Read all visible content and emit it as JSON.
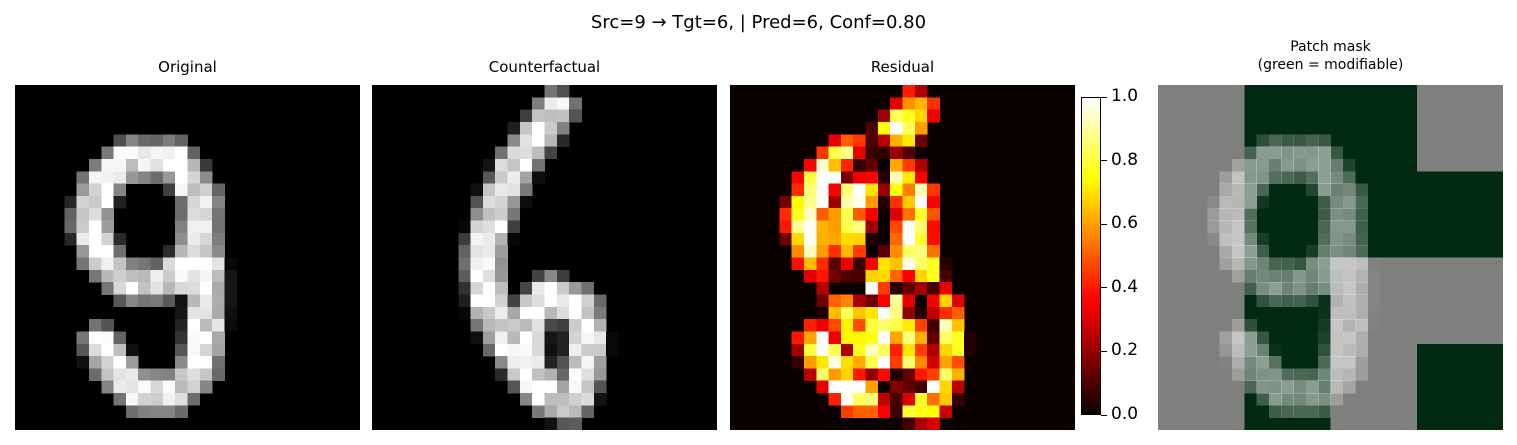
{
  "figure": {
    "suptitle": "Src=9 → Tgt=6, | Pred=6, Conf=0.80"
  },
  "panels": [
    {
      "title": "Original"
    },
    {
      "title": "Counterfactual"
    },
    {
      "title": "Residual"
    },
    {
      "title_line1": "Patch mask",
      "title_line2": "(green = modifiable)"
    }
  ],
  "colorbar": {
    "range": [
      0.0,
      1.0
    ],
    "ticks": [
      "0.0",
      "0.2",
      "0.4",
      "0.6",
      "0.8",
      "1.0"
    ],
    "colormap": "hot"
  },
  "mask_colors": {
    "modifiable": "#022a12",
    "fixed": "#7f807e"
  },
  "chart_data": [
    {
      "type": "heatmap",
      "name_ref": "Original",
      "colormap": "gray",
      "grid": "28x28",
      "strokes": [
        [
          [
            12,
            6
          ],
          [
            9,
            6
          ],
          [
            7,
            8
          ],
          [
            6,
            11
          ],
          [
            7,
            14
          ],
          [
            9,
            16
          ],
          [
            12,
            16
          ],
          [
            14,
            15
          ],
          [
            15,
            12
          ],
          [
            15,
            9
          ],
          [
            13,
            6
          ],
          [
            12,
            6
          ]
        ],
        [
          [
            15,
            12
          ],
          [
            15.5,
            15
          ],
          [
            15.5,
            19
          ],
          [
            15,
            23
          ],
          [
            13,
            25
          ],
          [
            10,
            25
          ],
          [
            8,
            23
          ],
          [
            7,
            21
          ]
        ]
      ],
      "range": [
        0,
        1
      ]
    },
    {
      "type": "heatmap",
      "name_ref": "Counterfactual",
      "colormap": "gray",
      "grid": "28x28",
      "strokes": [
        [
          [
            15,
            2
          ],
          [
            12,
            6
          ],
          [
            10,
            10
          ],
          [
            9,
            14
          ],
          [
            9.5,
            18
          ],
          [
            11,
            21
          ],
          [
            12.5,
            23
          ]
        ],
        [
          [
            12.5,
            23
          ],
          [
            14,
            25
          ],
          [
            16,
            26
          ],
          [
            17,
            24
          ],
          [
            17.5,
            21
          ],
          [
            17,
            18
          ],
          [
            14.5,
            17
          ],
          [
            12.5,
            19
          ],
          [
            12.5,
            23
          ]
        ]
      ],
      "range": [
        0,
        1
      ]
    },
    {
      "type": "heatmap",
      "name_ref": "Residual",
      "colormap": "hot",
      "grid": "28x28",
      "range": [
        0,
        1
      ]
    },
    {
      "type": "heatmap",
      "name_ref": "Patch mask",
      "grid": "4x4 patches",
      "mask": [
        [
          0,
          1,
          1,
          0
        ],
        [
          0,
          1,
          1,
          1
        ],
        [
          0,
          1,
          0,
          0
        ],
        [
          0,
          1,
          0,
          1
        ]
      ]
    }
  ]
}
